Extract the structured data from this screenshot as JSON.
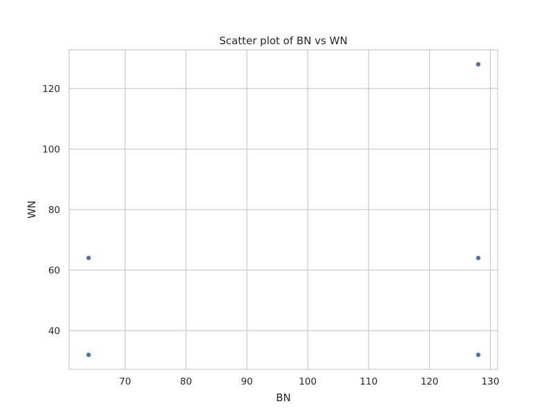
{
  "chart_data": {
    "type": "scatter",
    "title": "Scatter plot of BN vs WN",
    "xlabel": "BN",
    "ylabel": "WN",
    "xlim": [
      60.8,
      131.2
    ],
    "ylim": [
      27.2,
      132.8
    ],
    "xticks": [
      70,
      80,
      90,
      100,
      110,
      120,
      130
    ],
    "yticks": [
      40,
      60,
      80,
      100,
      120
    ],
    "grid": true,
    "marker_color": "#4c72b0",
    "grid_color": "#cccccc",
    "series": [
      {
        "points": [
          {
            "x": 64,
            "y": 32
          },
          {
            "x": 64,
            "y": 64
          },
          {
            "x": 128,
            "y": 32
          },
          {
            "x": 128,
            "y": 64
          },
          {
            "x": 128,
            "y": 128
          }
        ]
      }
    ]
  }
}
